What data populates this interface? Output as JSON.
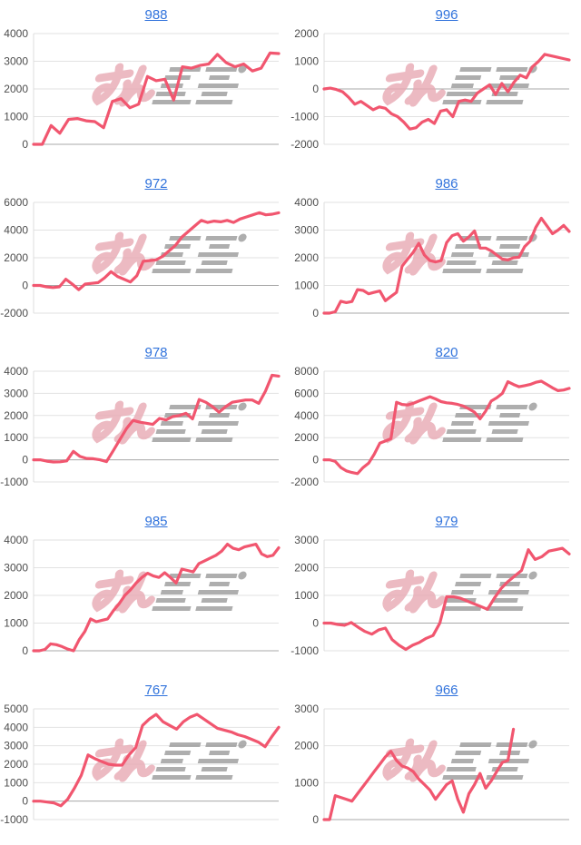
{
  "page": {
    "background": "#ffffff",
    "description": "grid of ten machine-number slump graphs"
  },
  "chart_style": {
    "line_color": "#f1566f",
    "grid_color": "#e2e2e2",
    "baseline_color": "#a8a8a8",
    "axis_line_color": "#dcdcdc",
    "tick_color": "#4d4d4d",
    "title_color": "#3173dc",
    "watermark_pink": "#e8a9b3",
    "watermark_gray": "#9a9a9a"
  },
  "watermark": {
    "name": "minrepo-logo-watermark",
    "pink_text": "みん",
    "gray_text": "レポ"
  },
  "chart_data": [
    {
      "type": "line",
      "title": "988",
      "xlabel": "",
      "ylabel": "",
      "ylim": [
        0,
        4000
      ],
      "yticks": [
        0,
        1000,
        2000,
        3000,
        4000
      ],
      "values": [
        0,
        0,
        680,
        400,
        900,
        930,
        850,
        820,
        600,
        1550,
        1650,
        1320,
        1450,
        2450,
        2300,
        2350,
        1600,
        2800,
        2750,
        2850,
        2900,
        3250,
        2950,
        2800,
        2900,
        2650,
        2750,
        3300,
        3280
      ]
    },
    {
      "type": "line",
      "title": "996",
      "xlabel": "",
      "ylabel": "",
      "ylim": [
        -2000,
        2000
      ],
      "yticks": [
        -2000,
        -1000,
        0,
        1000,
        2000
      ],
      "values": [
        0,
        30,
        -20,
        -100,
        -300,
        -550,
        -450,
        -600,
        -750,
        -650,
        -700,
        -900,
        -1000,
        -1200,
        -1450,
        -1400,
        -1200,
        -1100,
        -1250,
        -800,
        -750,
        -1000,
        -450,
        -400,
        -450,
        -150,
        0,
        150,
        -200,
        200,
        -100,
        250,
        500,
        400,
        800,
        1000,
        1250,
        1200,
        1150,
        1100,
        1050
      ]
    },
    {
      "type": "line",
      "title": "972",
      "xlabel": "",
      "ylabel": "",
      "ylim": [
        -2000,
        6000
      ],
      "yticks": [
        -2000,
        0,
        2000,
        4000,
        6000
      ],
      "values": [
        0,
        0,
        -100,
        -150,
        -100,
        450,
        100,
        -300,
        100,
        150,
        200,
        550,
        1000,
        650,
        450,
        250,
        700,
        1750,
        1800,
        1850,
        2100,
        2500,
        2900,
        3500,
        3900,
        4300,
        4700,
        4550,
        4650,
        4600,
        4700,
        4550,
        4800,
        4950,
        5100,
        5250,
        5100,
        5150,
        5250
      ]
    },
    {
      "type": "line",
      "title": "986",
      "xlabel": "",
      "ylabel": "",
      "ylim": [
        0,
        4000
      ],
      "yticks": [
        0,
        1000,
        2000,
        3000,
        4000
      ],
      "values": [
        0,
        0,
        50,
        430,
        380,
        420,
        850,
        820,
        700,
        750,
        800,
        450,
        600,
        750,
        1700,
        1950,
        2200,
        2520,
        2100,
        1900,
        1850,
        1900,
        2550,
        2800,
        2870,
        2600,
        2750,
        2970,
        2350,
        2350,
        2250,
        2100,
        1950,
        1920,
        2000,
        2020,
        2400,
        2600,
        3100,
        3430,
        3150,
        2870,
        3000,
        3170,
        2950
      ]
    },
    {
      "type": "line",
      "title": "978",
      "xlabel": "",
      "ylabel": "",
      "ylim": [
        -1000,
        4000
      ],
      "yticks": [
        -1000,
        0,
        1000,
        2000,
        3000,
        4000
      ],
      "values": [
        0,
        0,
        -60,
        -100,
        -90,
        -50,
        380,
        150,
        60,
        50,
        0,
        -80,
        400,
        900,
        1400,
        1780,
        1700,
        1650,
        1600,
        1870,
        1800,
        1950,
        2000,
        2100,
        1850,
        2720,
        2600,
        2400,
        2150,
        2400,
        2600,
        2650,
        2700,
        2700,
        2550,
        3100,
        3820,
        3780
      ]
    },
    {
      "type": "line",
      "title": "820",
      "xlabel": "",
      "ylabel": "",
      "ylim": [
        -2000,
        8000
      ],
      "yticks": [
        -2000,
        0,
        2000,
        4000,
        6000,
        8000
      ],
      "values": [
        0,
        0,
        -150,
        -700,
        -1000,
        -1150,
        -1250,
        -700,
        -300,
        500,
        1500,
        1700,
        1900,
        5200,
        5000,
        4950,
        5100,
        5300,
        5500,
        5700,
        5500,
        5250,
        5150,
        5100,
        5000,
        4850,
        4600,
        4300,
        3700,
        4400,
        5300,
        5600,
        6000,
        7050,
        6800,
        6600,
        6700,
        6800,
        7000,
        7100,
        6800,
        6500,
        6250,
        6300,
        6450
      ]
    },
    {
      "type": "line",
      "title": "985",
      "xlabel": "",
      "ylabel": "",
      "ylim": [
        0,
        4000
      ],
      "yticks": [
        0,
        1000,
        2000,
        3000,
        4000
      ],
      "values": [
        0,
        0,
        50,
        250,
        220,
        150,
        60,
        0,
        400,
        700,
        1150,
        1050,
        1100,
        1150,
        1450,
        1700,
        2000,
        2200,
        2450,
        2650,
        2800,
        2700,
        2650,
        2820,
        2650,
        2450,
        2950,
        2900,
        2850,
        3150,
        3250,
        3350,
        3450,
        3600,
        3850,
        3700,
        3650,
        3750,
        3800,
        3850,
        3500,
        3400,
        3450,
        3720
      ]
    },
    {
      "type": "line",
      "title": "979",
      "xlabel": "",
      "ylabel": "",
      "ylim": [
        -1000,
        3000
      ],
      "yticks": [
        -1000,
        0,
        1000,
        2000,
        3000
      ],
      "values": [
        0,
        0,
        -50,
        -80,
        20,
        -150,
        -300,
        -400,
        -250,
        -180,
        -600,
        -800,
        -950,
        -800,
        -700,
        -550,
        -450,
        0,
        950,
        950,
        900,
        800,
        700,
        600,
        500,
        900,
        1250,
        1500,
        1700,
        1900,
        2650,
        2300,
        2400,
        2600,
        2650,
        2700,
        2500
      ]
    },
    {
      "type": "line",
      "title": "767",
      "xlabel": "",
      "ylabel": "",
      "ylim": [
        -1000,
        5000
      ],
      "yticks": [
        -1000,
        0,
        1000,
        2000,
        3000,
        4000,
        5000
      ],
      "values": [
        0,
        0,
        -50,
        -100,
        -250,
        100,
        700,
        1400,
        2500,
        2300,
        2150,
        2000,
        1950,
        1950,
        2500,
        2900,
        4100,
        4450,
        4700,
        4300,
        4100,
        3900,
        4300,
        4550,
        4700,
        4450,
        4200,
        3950,
        3850,
        3750,
        3600,
        3500,
        3350,
        3200,
        2950,
        3500,
        4000
      ]
    },
    {
      "type": "line",
      "title": "966",
      "xlabel": "",
      "ylabel": "",
      "ylim": [
        0,
        3000
      ],
      "yticks": [
        0,
        1000,
        2000,
        3000
      ],
      "slots": 45,
      "values": [
        0,
        0,
        650,
        600,
        550,
        500,
        700,
        900,
        1100,
        1300,
        1500,
        1700,
        1850,
        1600,
        1450,
        1400,
        1300,
        1100,
        950,
        800,
        550,
        750,
        950,
        1050,
        550,
        200,
        700,
        950,
        1250,
        850,
        1050,
        1300,
        1550,
        1600,
        2450
      ]
    }
  ]
}
